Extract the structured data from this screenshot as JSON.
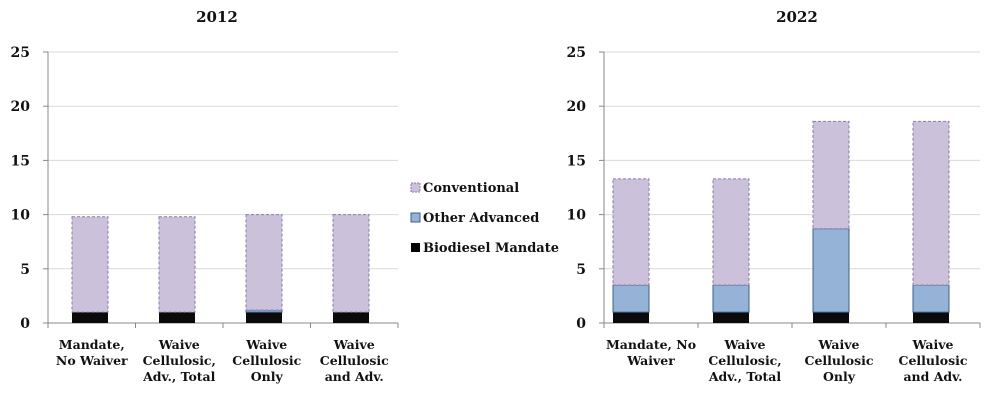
{
  "chart_data": [
    {
      "type": "bar",
      "stacked": true,
      "title": "2012",
      "categories": [
        [
          "Mandate,",
          "No Waiver"
        ],
        [
          "Waive",
          "Cellulosic,",
          "Adv., Total"
        ],
        [
          "Waive",
          "Cellulosic",
          "Only"
        ],
        [
          "Waive",
          "Cellulosic",
          "and Adv."
        ]
      ],
      "ylim": [
        0,
        25
      ],
      "yticks": [
        0,
        5,
        10,
        15,
        20,
        25
      ],
      "series": [
        {
          "name": "Biodiesel Mandate",
          "values": [
            1.0,
            1.0,
            1.0,
            1.0
          ]
        },
        {
          "name": "Other Advanced",
          "values": [
            0.0,
            0.0,
            0.2,
            0.0
          ]
        },
        {
          "name": "Conventional",
          "values": [
            8.8,
            8.8,
            8.8,
            9.0
          ]
        }
      ]
    },
    {
      "type": "bar",
      "stacked": true,
      "title": "2022",
      "categories": [
        [
          "Mandate, No",
          "Waiver"
        ],
        [
          "Waive",
          "Cellulosic,",
          "Adv., Total"
        ],
        [
          "Waive",
          "Cellulosic",
          "Only"
        ],
        [
          "Waive",
          "Cellulosic",
          "and Adv."
        ]
      ],
      "ylim": [
        0,
        25
      ],
      "yticks": [
        0,
        5,
        10,
        15,
        20,
        25
      ],
      "series": [
        {
          "name": "Biodiesel Mandate",
          "values": [
            1.0,
            1.0,
            1.0,
            1.0
          ]
        },
        {
          "name": "Other Advanced",
          "values": [
            2.5,
            2.5,
            7.7,
            2.5
          ]
        },
        {
          "name": "Conventional",
          "values": [
            9.8,
            9.8,
            9.9,
            15.1
          ]
        }
      ]
    }
  ],
  "legend": {
    "placement": "between-charts",
    "items": [
      {
        "label": "Conventional",
        "color": "#ccc1da"
      },
      {
        "label": "Other Advanced",
        "color": "#95b3d7"
      },
      {
        "label": "Biodiesel Mandate",
        "color": "#000000"
      }
    ]
  },
  "colors": {
    "Conventional": "#ccc1da",
    "Other Advanced": "#95b3d7",
    "Biodiesel Mandate": "#0a0a0a",
    "conventional_border": "#8c7aa6",
    "advanced_border": "#3f5f8a",
    "axis": "#888888",
    "grid": "#d9d9d9"
  }
}
